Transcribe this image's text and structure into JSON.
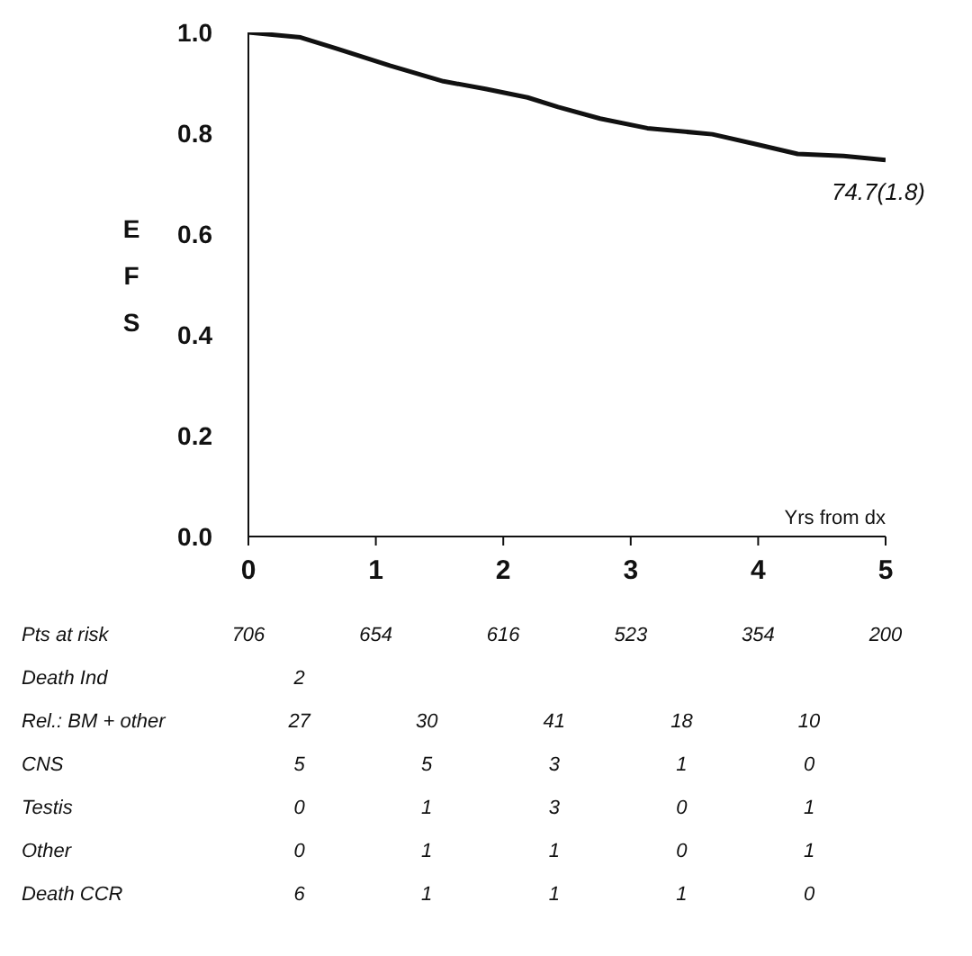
{
  "chart_data": {
    "type": "line",
    "ylabel": "EFS",
    "xlabel": "Yrs from dx",
    "x": [
      0,
      0.41,
      0.69,
      1.11,
      1.53,
      1.86,
      2.19,
      2.43,
      2.76,
      3.13,
      3.64,
      3.97,
      4.31,
      4.67,
      5
    ],
    "values": [
      1.0,
      0.99,
      0.968,
      0.934,
      0.903,
      0.888,
      0.871,
      0.852,
      0.829,
      0.81,
      0.798,
      0.779,
      0.759,
      0.755,
      0.747
    ],
    "color": "#111111",
    "xlim": [
      0,
      5
    ],
    "xticks": [
      0,
      1,
      2,
      3,
      4,
      5
    ],
    "ylim": [
      0,
      1
    ],
    "yticks": [
      {
        "value": 0,
        "label": "0.0"
      },
      {
        "value": 0.2,
        "label": "0.2"
      },
      {
        "value": 0.4,
        "label": "0.4"
      },
      {
        "value": 0.6,
        "label": "0.6"
      },
      {
        "value": 0.8,
        "label": "0.8"
      },
      {
        "value": 1,
        "label": "1.0"
      }
    ],
    "grid": false,
    "marker": "none",
    "annotations": [
      {
        "text": "74.7(1.8)",
        "x": 5,
        "y": 0.747
      },
      "Pts at risk\t706\t654\t616\t523\t354\t200",
      "Death Ind\t2",
      "Rel.: BM + other\t27\t30\t41\t18\t10",
      "CNS\t5\t5\t3\t1\t0",
      "Testis\t0\t1\t3\t0\t1",
      "Other\t0\t1\t1\t0\t1",
      "Death CCR\t6\t1\t1\t1\t0"
    ]
  }
}
